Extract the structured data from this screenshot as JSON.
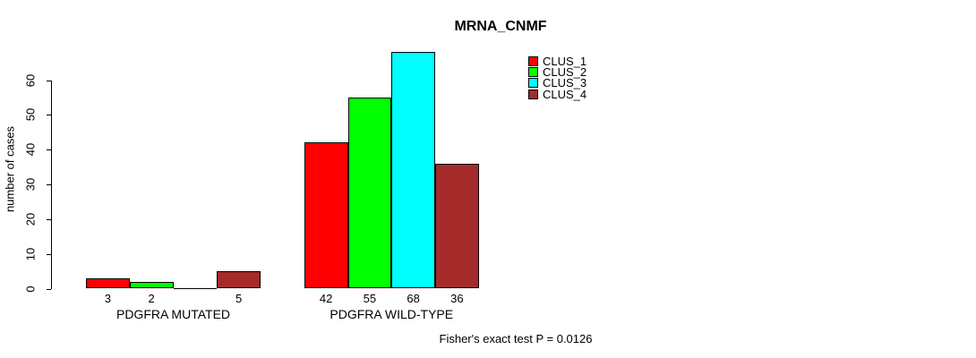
{
  "chart_data": {
    "type": "bar",
    "title": "MRNA_CNMF",
    "ylabel": "number of cases",
    "xlabel": "",
    "yticks": [
      0,
      10,
      20,
      30,
      40,
      50,
      60
    ],
    "ylim": [
      0,
      68
    ],
    "grid": false,
    "legend_position": "top-right",
    "series": [
      {
        "name": "CLUS_1",
        "color": "#FF0000"
      },
      {
        "name": "CLUS_2",
        "color": "#00FF00"
      },
      {
        "name": "CLUS_3",
        "color": "#00FFFF"
      },
      {
        "name": "CLUS_4",
        "color": "#A52A2A"
      }
    ],
    "groups": [
      {
        "label": "PDGFRA MUTATED",
        "values": [
          3,
          2,
          0,
          5
        ],
        "bar_labels": [
          "3",
          "2",
          "",
          "5"
        ]
      },
      {
        "label": "PDGFRA WILD-TYPE",
        "values": [
          42,
          55,
          68,
          36
        ],
        "bar_labels": [
          "42",
          "55",
          "68",
          "36"
        ]
      }
    ],
    "annotation": "Fisher's exact test P = 0.0126"
  }
}
